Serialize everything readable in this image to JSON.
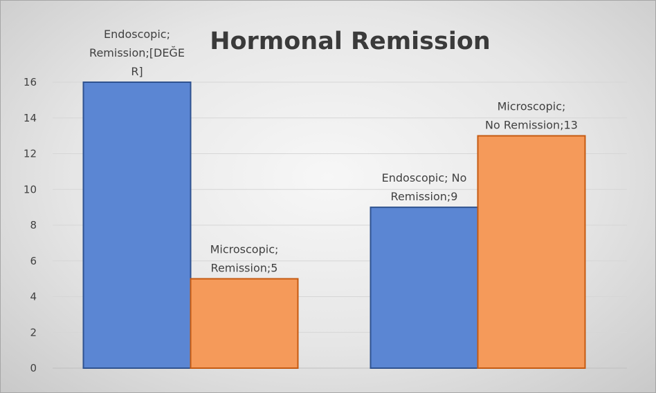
{
  "chart_data": {
    "type": "bar",
    "title": "Hormonal Remission",
    "xlabel": "",
    "ylabel": "",
    "ylim": [
      0,
      16
    ],
    "yticks": [
      0,
      2,
      4,
      6,
      8,
      10,
      12,
      14,
      16
    ],
    "grid": true,
    "legend": "none",
    "bars": [
      {
        "group": 0,
        "value": 16,
        "color": "#5b86d3",
        "label": [
          "Endoscopic;",
          "Remission;[DEĞE",
          "R]"
        ]
      },
      {
        "group": 0,
        "value": 5,
        "color": "#f59a5a",
        "label": [
          "Microscopic;",
          "Remission;5"
        ]
      },
      {
        "group": 1,
        "value": 9,
        "color": "#5b86d3",
        "label": [
          "Endoscopic; No",
          "Remission;9"
        ]
      },
      {
        "group": 1,
        "value": 13,
        "color": "#f59a5a",
        "label": [
          "Microscopic;",
          "No Remission;13"
        ]
      }
    ]
  }
}
